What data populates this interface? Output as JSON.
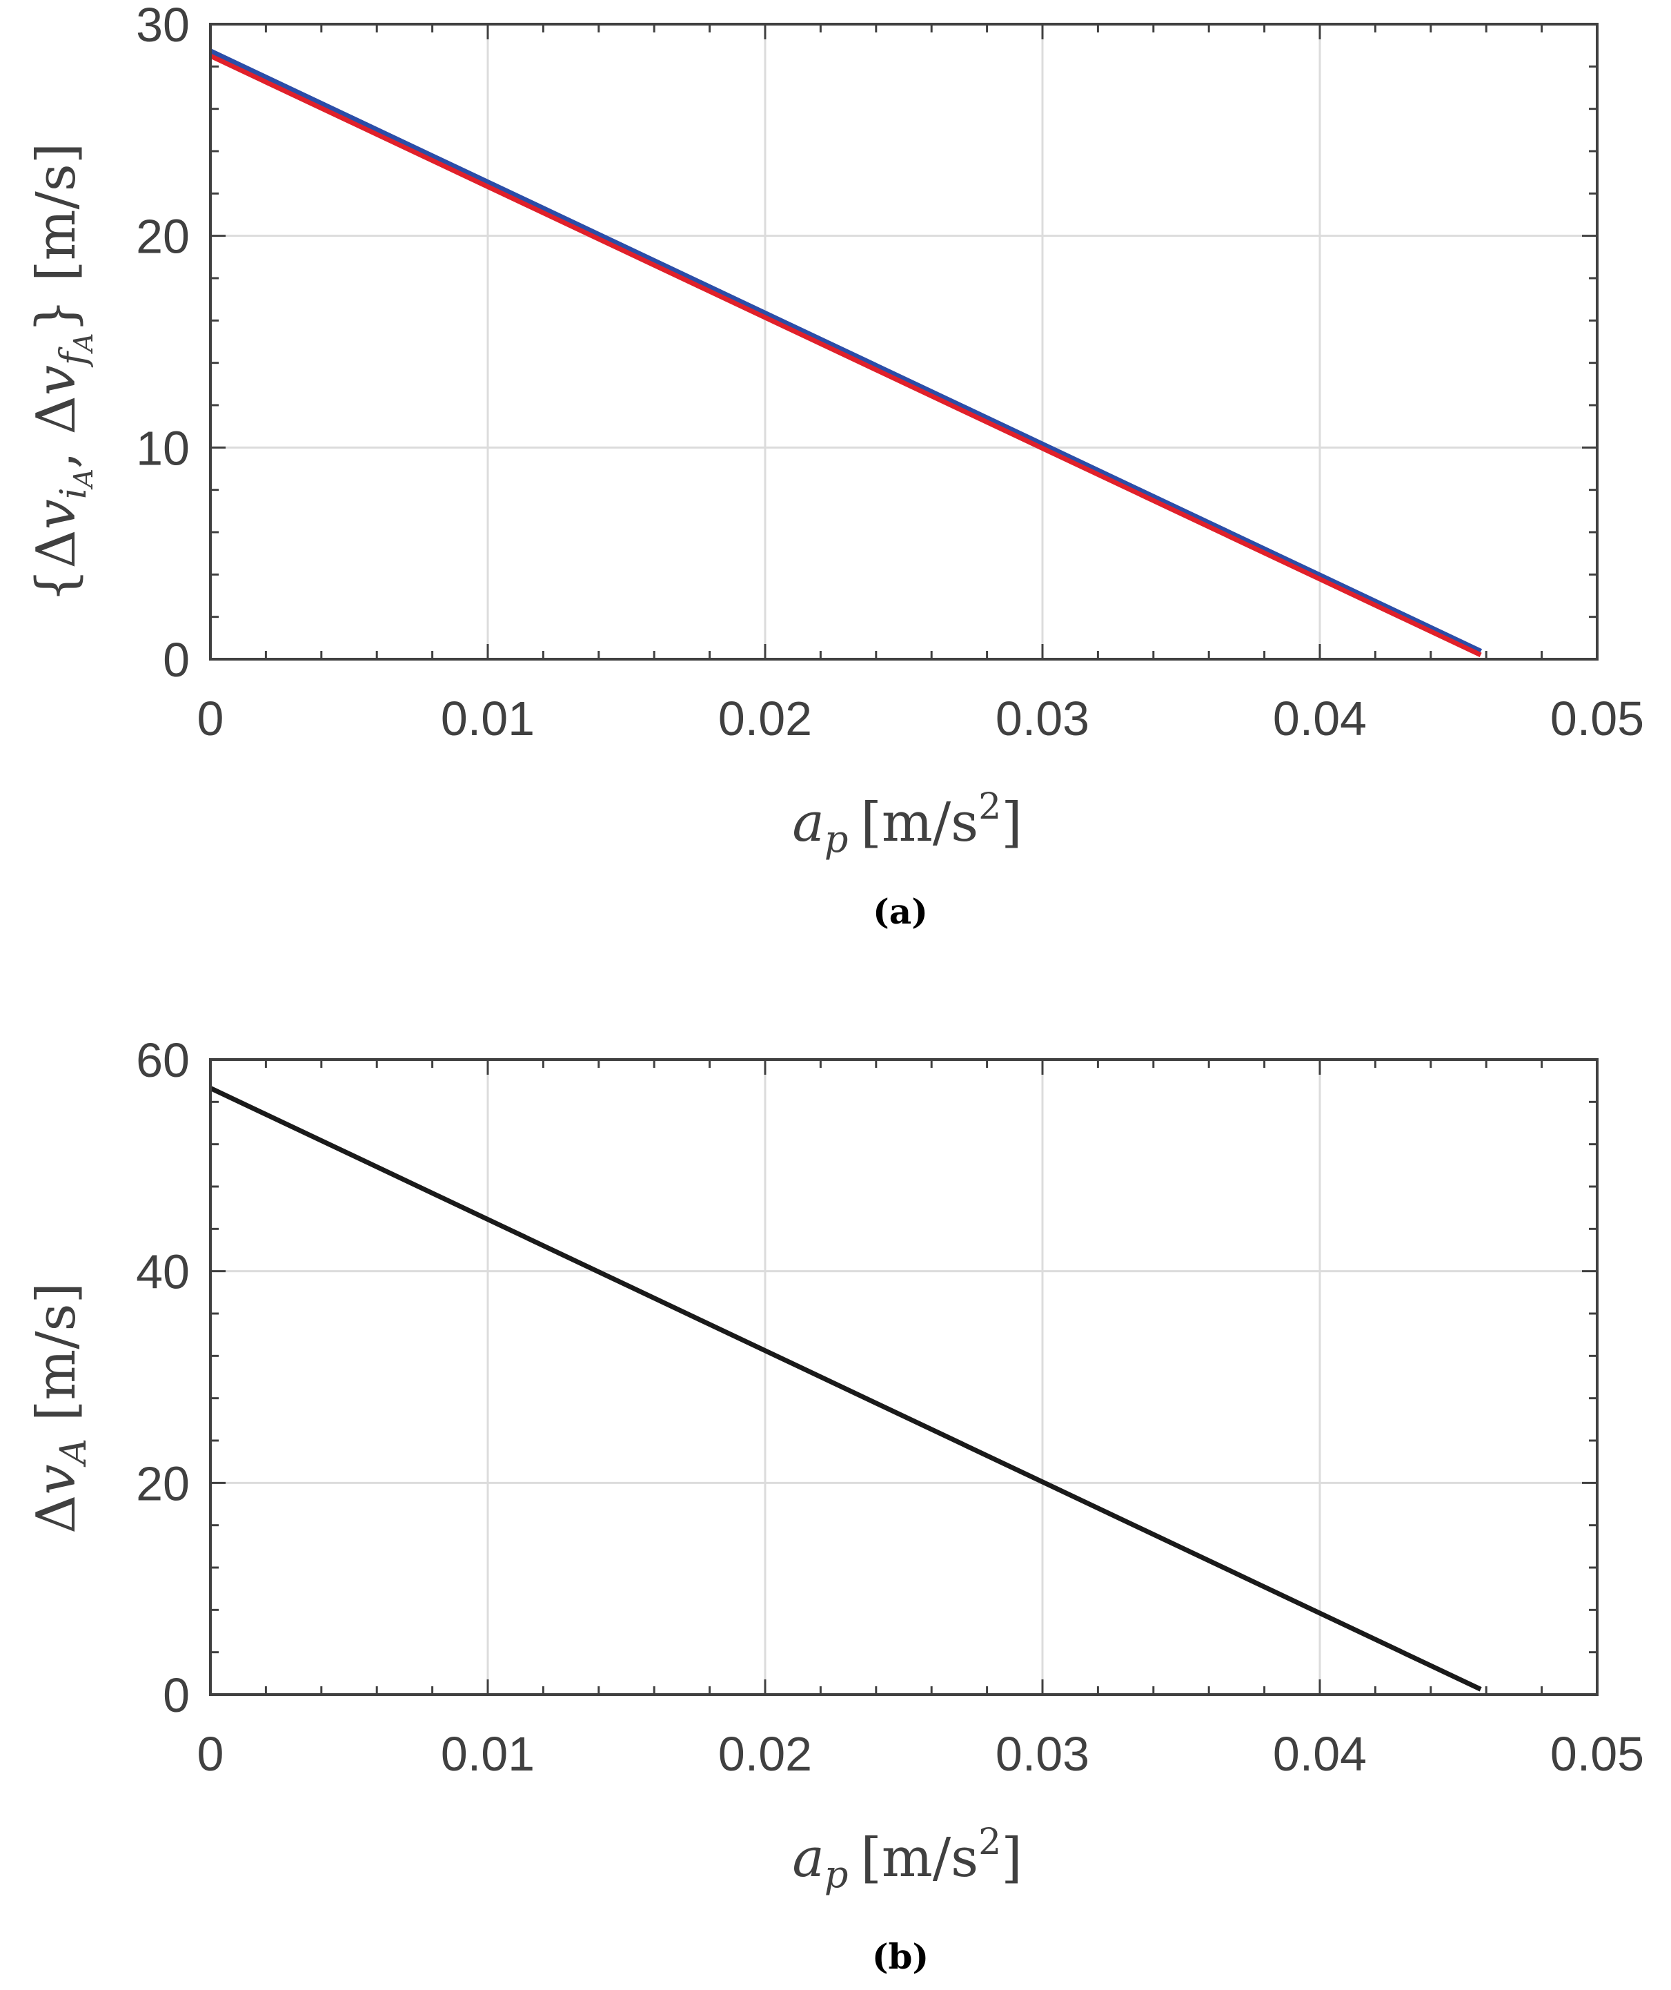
{
  "colors": {
    "axis": "#404040",
    "grid": "#dcdcdc",
    "series_blue": "#2b4da8",
    "series_red": "#e0202a",
    "series_black": "#1a1a1a"
  },
  "chart_data": [
    {
      "type": "line",
      "caption": "(a)",
      "xlabel": "a_p [m/s^2]",
      "ylabel": "{Δv_iA, Δv_fA} [m/s]",
      "xlim": [
        0,
        0.05
      ],
      "ylim": [
        0,
        30
      ],
      "xticks": [
        "0",
        "0.01",
        "0.02",
        "0.03",
        "0.04",
        "0.05"
      ],
      "yticks": [
        "0",
        "10",
        "20",
        "30"
      ],
      "grid": true,
      "series": [
        {
          "color": "blue",
          "x": [
            0,
            0.0458
          ],
          "y": [
            28.7,
            0.35
          ]
        },
        {
          "color": "red",
          "x": [
            0,
            0.0458
          ],
          "y": [
            28.5,
            0.2
          ]
        }
      ]
    },
    {
      "type": "line",
      "caption": "(b)",
      "xlabel": "a_p [m/s^2]",
      "ylabel": "Δv_A [m/s]",
      "xlim": [
        0,
        0.05
      ],
      "ylim": [
        0,
        60
      ],
      "xticks": [
        "0",
        "0.01",
        "0.02",
        "0.03",
        "0.04",
        "0.05"
      ],
      "yticks": [
        "0",
        "20",
        "40",
        "60"
      ],
      "grid": true,
      "series": [
        {
          "color": "black",
          "x": [
            0,
            0.0458
          ],
          "y": [
            57.3,
            0.5
          ]
        }
      ]
    }
  ]
}
